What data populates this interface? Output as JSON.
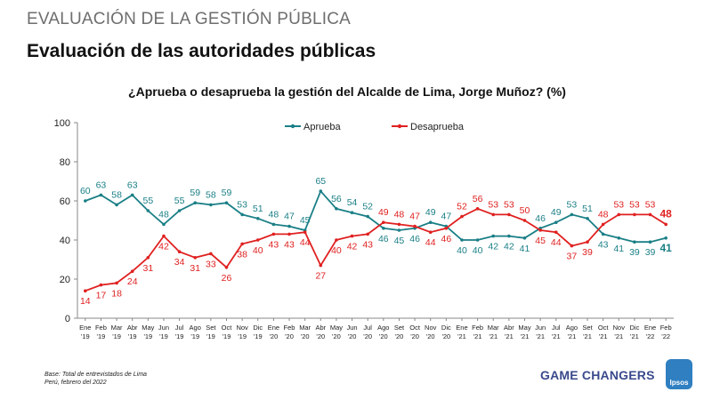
{
  "header": {
    "kicker": "EVALUACIÓN DE LA GESTIÓN PÚBLICA",
    "title": "Evaluación de las autoridades públicas"
  },
  "chart_data": {
    "type": "line",
    "title": "¿Aprueba o desaprueba la gestión del Alcalde de Lima, Jorge Muñoz? (%)",
    "xlabel": "",
    "ylabel": "",
    "ylim": [
      0,
      100
    ],
    "yticks": [
      0,
      20,
      40,
      60,
      80,
      100
    ],
    "grid": false,
    "legend_position": "top-center",
    "categories": [
      [
        "Ene",
        "'19"
      ],
      [
        "Feb",
        "'19"
      ],
      [
        "Mar",
        "'19"
      ],
      [
        "Abr",
        "'19"
      ],
      [
        "May",
        "'19"
      ],
      [
        "Jun",
        "'19"
      ],
      [
        "Jul",
        "'19"
      ],
      [
        "Ago",
        "'19"
      ],
      [
        "Set",
        "'19"
      ],
      [
        "Oct",
        "'19"
      ],
      [
        "Nov",
        "'19"
      ],
      [
        "Dic",
        "'19"
      ],
      [
        "Ene",
        "'20"
      ],
      [
        "Feb",
        "'20"
      ],
      [
        "Mar",
        "'20"
      ],
      [
        "Abr",
        "'20"
      ],
      [
        "May",
        "'20"
      ],
      [
        "Jun",
        "'20"
      ],
      [
        "Jul",
        "'20"
      ],
      [
        "Ago",
        "'20"
      ],
      [
        "Set",
        "'20"
      ],
      [
        "Oct",
        "'20"
      ],
      [
        "Nov",
        "'20"
      ],
      [
        "Dic",
        "'20"
      ],
      [
        "Ene",
        "'21"
      ],
      [
        "Feb",
        "'21"
      ],
      [
        "Mar",
        "'21"
      ],
      [
        "Abr",
        "'21"
      ],
      [
        "May",
        "'21"
      ],
      [
        "Jun",
        "'21"
      ],
      [
        "Jul",
        "'21"
      ],
      [
        "Ago",
        "'21"
      ],
      [
        "Set",
        "'21"
      ],
      [
        "Oct",
        "'21"
      ],
      [
        "Nov",
        "'21"
      ],
      [
        "Dic",
        "'21"
      ],
      [
        "Ene",
        "'22"
      ],
      [
        "Feb",
        "'22"
      ]
    ],
    "series": [
      {
        "name": "Aprueba",
        "color": "#1a7f86",
        "values": [
          60,
          63,
          58,
          63,
          55,
          48,
          55,
          59,
          58,
          59,
          53,
          51,
          48,
          47,
          45,
          65,
          56,
          54,
          52,
          46,
          45,
          46,
          49,
          47,
          40,
          40,
          42,
          42,
          41,
          46,
          49,
          53,
          51,
          43,
          41,
          39,
          39,
          41
        ]
      },
      {
        "name": "Desaprueba",
        "color": "#e02020",
        "values": [
          14,
          17,
          18,
          24,
          31,
          42,
          34,
          31,
          33,
          26,
          38,
          40,
          43,
          43,
          44,
          27,
          40,
          42,
          43,
          49,
          48,
          47,
          44,
          46,
          52,
          56,
          53,
          53,
          50,
          45,
          44,
          37,
          39,
          48,
          53,
          53,
          53,
          48
        ]
      }
    ]
  },
  "footnote": {
    "line1": "Base: Total de entrevistados de Lima",
    "line2": "Perú, febrero del 2022"
  },
  "brand": {
    "tagline": "GAME CHANGERS",
    "logo": "Ipsos"
  }
}
